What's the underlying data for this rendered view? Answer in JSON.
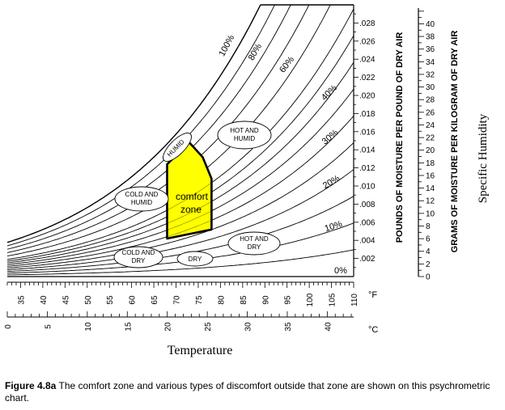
{
  "chart_data": {
    "type": "line",
    "title": "",
    "xlabel": "Temperature",
    "x_unit_f": "°F",
    "x_unit_c": "°C",
    "xlim_f": [
      32,
      110
    ],
    "xlim_c": [
      0,
      43.3
    ],
    "f_ticks": [
      "35",
      "40",
      "45",
      "50",
      "55",
      "60",
      "65",
      "70",
      "75",
      "80",
      "85",
      "90",
      "95",
      "100",
      "105",
      "110"
    ],
    "c_ticks": [
      "0",
      "5",
      "10",
      "15",
      "20",
      "25",
      "30",
      "35",
      "40"
    ],
    "ylabel_left": "POUNDS OF MOISTURE PER POUND OF DRY AIR",
    "ylabel_right": "GRAMS OF MOISTURE PER KILOGRAM OF DRY AIR",
    "ylabel_outer": "Specific Humidity",
    "ylim_lb": [
      0,
      0.03
    ],
    "ylim_g": [
      0,
      43
    ],
    "lb_ticks": [
      ".002",
      ".004",
      ".006",
      ".008",
      ".010",
      ".012",
      ".014",
      ".016",
      ".018",
      ".020",
      ".022",
      ".024",
      ".026",
      ".028"
    ],
    "g_ticks": [
      "0",
      "2",
      "4",
      "6",
      "8",
      "10",
      "12",
      "14",
      "16",
      "18",
      "20",
      "22",
      "24",
      "26",
      "28",
      "30",
      "32",
      "34",
      "36",
      "38",
      "40"
    ],
    "relative_humidity_labels": [
      "100%",
      "80%",
      "60%",
      "40%",
      "30%",
      "20%",
      "10%",
      "0%"
    ],
    "comfort_zone": {
      "label_line1": "comfort",
      "label_line2": "zone",
      "fill": "#ffff00",
      "polygon_f_lb": [
        [
          68,
          0.0042
        ],
        [
          78,
          0.0052
        ],
        [
          78,
          0.0108
        ],
        [
          76,
          0.0132
        ],
        [
          73,
          0.0148
        ],
        [
          68,
          0.0124
        ]
      ]
    },
    "regions": {
      "humid": "HUMID",
      "hot_and_humid": [
        "HOT AND",
        "HUMID"
      ],
      "cold_and_humid": [
        "COLD AND",
        "HUMID"
      ],
      "hot_and_dry": [
        "HOT AND",
        "DRY"
      ],
      "cold_and_dry": [
        "COLD AND",
        "DRY"
      ],
      "dry": "DRY"
    }
  },
  "caption": {
    "label": "Figure 4.8a",
    "text": "The comfort zone and various types of discomfort outside that zone are shown on this psychrometric chart."
  }
}
